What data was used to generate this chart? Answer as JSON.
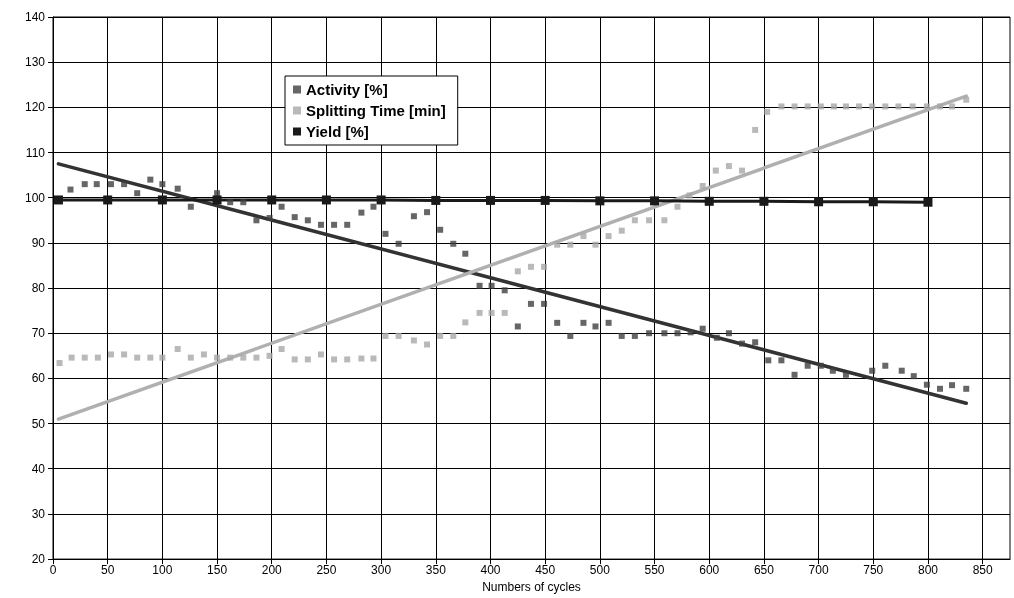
{
  "chart_data": {
    "type": "scatter",
    "xlabel": "Numbers of cycles",
    "xlim": [
      0,
      875
    ],
    "xticks": [
      0,
      50,
      100,
      150,
      200,
      250,
      300,
      350,
      400,
      450,
      500,
      550,
      600,
      650,
      700,
      750,
      800,
      850
    ],
    "ylim": [
      20,
      140
    ],
    "yticks": [
      20,
      30,
      40,
      50,
      60,
      70,
      80,
      90,
      100,
      110,
      120,
      130,
      140
    ],
    "grid": true,
    "legend": "top",
    "marker": "square",
    "series": [
      {
        "name": "Activity [%]",
        "color": "#404040",
        "x": [
          16,
          29,
          40,
          53,
          65,
          77,
          89,
          100,
          114,
          126,
          150,
          162,
          174,
          186,
          198,
          209,
          221,
          233,
          245,
          257,
          269,
          282,
          293,
          304,
          316,
          330,
          342,
          354,
          366,
          377,
          390,
          401,
          413,
          425,
          437,
          449,
          461,
          473,
          485,
          496,
          508,
          520,
          532,
          545,
          559,
          571,
          583,
          594,
          607,
          618,
          630,
          642,
          654,
          666,
          678,
          690,
          702,
          713,
          725,
          749,
          761,
          776,
          787,
          799,
          811,
          822,
          835
        ],
        "values": [
          101.8,
          103,
          103,
          103,
          103,
          101,
          104,
          103,
          102,
          98,
          101,
          99,
          99,
          95,
          95.5,
          98,
          95.7,
          95,
          94,
          94,
          94,
          96.7,
          98,
          92,
          89.8,
          95.9,
          96.8,
          92.9,
          89.8,
          87.6,
          80.5,
          80.5,
          79.5,
          71.5,
          76.5,
          76.5,
          72.3,
          69.4,
          72.3,
          71.5,
          72.3,
          69.4,
          69.4,
          70,
          70,
          70,
          70.2,
          71,
          69,
          70,
          67.7,
          68,
          64,
          64,
          60.8,
          62.8,
          62.8,
          61.7,
          60.8,
          61.7,
          62.8,
          61.7,
          60.5,
          58.6,
          57.7,
          58.5,
          57.7
        ]
      },
      {
        "name": "Splitting Time [min]",
        "color": "#a8a8a8",
        "x": [
          6,
          17,
          29,
          41,
          53,
          65,
          77,
          89,
          100,
          114,
          126,
          138,
          150,
          162,
          174,
          186,
          198,
          209,
          221,
          233,
          245,
          257,
          269,
          282,
          293,
          304,
          316,
          330,
          342,
          354,
          366,
          377,
          390,
          401,
          413,
          425,
          437,
          449,
          461,
          473,
          485,
          496,
          508,
          520,
          532,
          545,
          559,
          571,
          582,
          594,
          606,
          618,
          630,
          642,
          653,
          666,
          678,
          690,
          702,
          714,
          725,
          737,
          749,
          761,
          773,
          786,
          799,
          811,
          822,
          835
        ],
        "values": [
          63.4,
          64.6,
          64.6,
          64.6,
          65.3,
          65.3,
          64.6,
          64.6,
          64.6,
          66.5,
          64.6,
          65.3,
          64.6,
          64.6,
          64.6,
          64.6,
          65,
          66.5,
          64.2,
          64.2,
          65.3,
          64.2,
          64.2,
          64.4,
          64.4,
          69.4,
          69.4,
          68.4,
          67.5,
          69.4,
          69.4,
          72.4,
          74.5,
          74.5,
          74.5,
          83.7,
          84.7,
          84.7,
          89.6,
          89.6,
          91.5,
          89.6,
          91.5,
          92.7,
          95,
          95,
          95,
          98,
          100.5,
          102.6,
          106,
          107,
          106,
          115,
          119,
          120.2,
          120.2,
          120.2,
          120.2,
          120.2,
          120.2,
          120.2,
          120.2,
          120.2,
          120.2,
          120.2,
          120.2,
          120.2,
          120.2,
          121.7
        ]
      },
      {
        "name": "Yield [%]",
        "color": "#1a1a1a",
        "type": "line",
        "marker": "square",
        "x": [
          5,
          50,
          100,
          150,
          200,
          250,
          300,
          350,
          400,
          450,
          500,
          550,
          600,
          650,
          700,
          750,
          800
        ],
        "values": [
          99.5,
          99.5,
          99.5,
          99.5,
          99.5,
          99.5,
          99.5,
          99.4,
          99.4,
          99.4,
          99.3,
          99.3,
          99.2,
          99.2,
          99.1,
          99.1,
          99
        ]
      },
      {
        "type": "line",
        "color": "#333333",
        "marker": "none",
        "x": [
          5,
          835
        ],
        "values": [
          107.5,
          54.5
        ]
      },
      {
        "type": "line",
        "color": "#b0b0b0",
        "marker": "none",
        "x": [
          5,
          835
        ],
        "values": [
          51,
          122.5
        ]
      }
    ]
  }
}
